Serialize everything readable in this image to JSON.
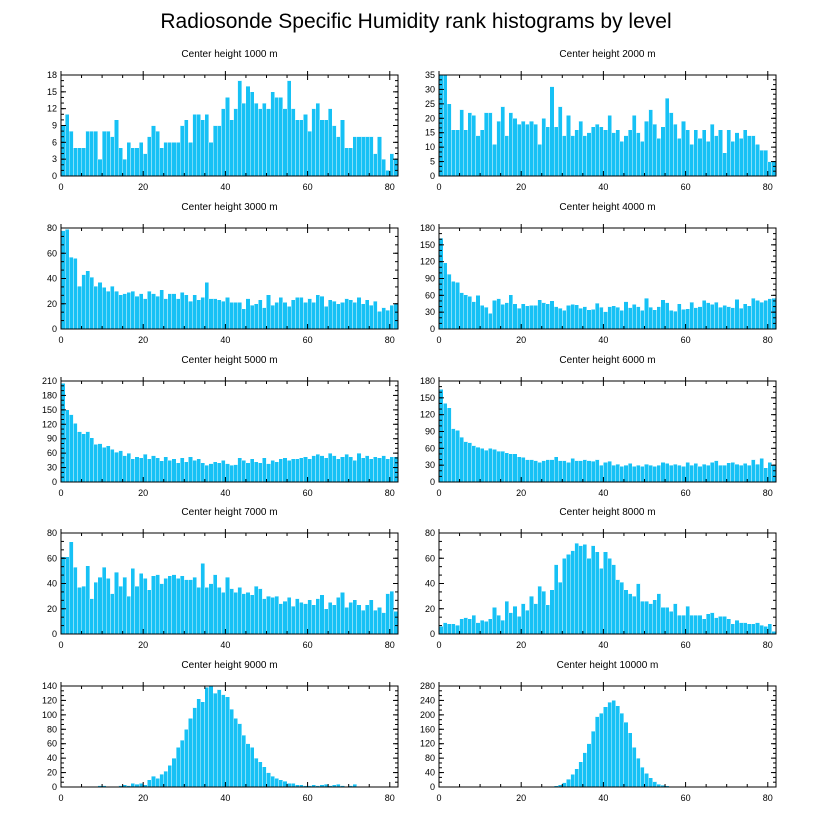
{
  "page": {
    "title": "Radiosonde Specific Humidity rank histograms by level"
  },
  "colors": {
    "bar": "#16c1f5",
    "bar_edge": "#ffffff",
    "axis": "#000000"
  },
  "chart_data": [
    {
      "type": "bar",
      "title": "Center height 1000 m",
      "xlim": [
        0,
        82
      ],
      "ylim": [
        0,
        18
      ],
      "xticks": [
        0,
        20,
        40,
        60,
        80
      ],
      "yticks": [
        0,
        3,
        6,
        9,
        12,
        15,
        18
      ],
      "xticklabels": [
        "0",
        "20",
        "40",
        "60",
        "80"
      ],
      "yticklabels": [
        "0",
        "3",
        "6",
        "9",
        "12",
        "15",
        "18"
      ],
      "values": [
        9,
        11,
        8,
        5,
        5,
        5,
        8,
        8,
        8,
        3,
        8,
        8,
        7,
        10,
        5,
        3,
        6,
        5,
        5,
        6,
        4,
        7,
        9,
        8,
        5,
        6,
        6,
        6,
        6,
        9,
        10,
        6,
        11,
        11,
        10,
        11,
        6,
        9,
        9,
        12,
        14,
        10,
        12,
        17,
        13,
        16,
        15,
        13,
        12,
        13,
        12,
        15,
        14,
        14,
        12,
        17,
        12,
        10,
        10,
        11,
        8,
        12,
        13,
        10,
        10,
        12,
        9,
        7,
        10,
        5,
        5,
        7,
        7,
        7,
        7,
        7,
        4,
        7,
        3,
        1,
        4,
        3
      ]
    },
    {
      "type": "bar",
      "title": "Center height 2000 m",
      "xlim": [
        0,
        82
      ],
      "ylim": [
        0,
        35
      ],
      "xticks": [
        0,
        20,
        40,
        60,
        80
      ],
      "yticks": [
        0,
        5,
        10,
        15,
        20,
        25,
        30,
        35
      ],
      "xticklabels": [
        "0",
        "20",
        "40",
        "60",
        "80"
      ],
      "yticklabels": [
        "0",
        "5",
        "10",
        "15",
        "20",
        "25",
        "30",
        "35"
      ],
      "values": [
        35,
        35,
        25,
        16,
        16,
        23,
        16,
        22,
        21,
        14,
        16,
        22,
        22,
        11,
        19,
        24,
        14,
        22,
        20,
        18,
        19,
        18,
        19,
        18,
        11,
        20,
        17,
        31,
        17,
        24,
        14,
        21,
        14,
        16,
        19,
        14,
        15,
        17,
        18,
        17,
        16,
        21,
        15,
        16,
        12,
        14,
        16,
        21,
        15,
        12,
        19,
        23,
        18,
        13,
        17,
        27,
        22,
        18,
        13,
        19,
        16,
        11,
        16,
        13,
        16,
        12,
        18,
        14,
        16,
        8,
        16,
        12,
        15,
        13,
        16,
        14,
        14,
        11,
        9,
        9,
        5,
        5
      ]
    },
    {
      "type": "bar",
      "title": "Center height 3000 m",
      "xlim": [
        0,
        82
      ],
      "ylim": [
        0,
        80
      ],
      "xticks": [
        0,
        20,
        40,
        60,
        80
      ],
      "yticks": [
        0,
        20,
        40,
        60,
        80
      ],
      "xticklabels": [
        "0",
        "20",
        "40",
        "60",
        "80"
      ],
      "yticklabels": [
        "0",
        "20",
        "40",
        "60",
        "80"
      ],
      "values": [
        78,
        79,
        57,
        56,
        34,
        43,
        46,
        41,
        34,
        37,
        33,
        30,
        34,
        30,
        27,
        28,
        29,
        30,
        26,
        28,
        24,
        30,
        28,
        26,
        31,
        24,
        28,
        28,
        24,
        29,
        27,
        22,
        27,
        23,
        25,
        37,
        24,
        24,
        23,
        22,
        25,
        21,
        21,
        21,
        16,
        24,
        19,
        20,
        23,
        17,
        27,
        19,
        21,
        25,
        21,
        18,
        23,
        25,
        25,
        21,
        24,
        21,
        27,
        26,
        18,
        23,
        22,
        20,
        21,
        24,
        23,
        21,
        25,
        20,
        23,
        19,
        22,
        14,
        17,
        15,
        19,
        20
      ]
    },
    {
      "type": "bar",
      "title": "Center height 4000 m",
      "xlim": [
        0,
        82
      ],
      "ylim": [
        0,
        180
      ],
      "xticks": [
        0,
        20,
        40,
        60,
        80
      ],
      "yticks": [
        0,
        30,
        60,
        90,
        120,
        150,
        180
      ],
      "xticklabels": [
        "0",
        "20",
        "40",
        "60",
        "80"
      ],
      "yticklabels": [
        "0",
        "30",
        "60",
        "90",
        "120",
        "150",
        "180"
      ],
      "values": [
        162,
        118,
        98,
        85,
        83,
        65,
        61,
        58,
        49,
        60,
        42,
        39,
        28,
        51,
        54,
        44,
        47,
        61,
        45,
        37,
        45,
        41,
        42,
        42,
        52,
        47,
        45,
        50,
        40,
        37,
        33,
        42,
        44,
        43,
        37,
        40,
        34,
        35,
        46,
        39,
        31,
        40,
        41,
        39,
        33,
        49,
        38,
        44,
        40,
        33,
        55,
        39,
        34,
        40,
        52,
        47,
        33,
        32,
        45,
        35,
        36,
        48,
        38,
        40,
        51,
        47,
        44,
        48,
        39,
        42,
        40,
        38,
        53,
        37,
        45,
        41,
        55,
        51,
        48,
        51,
        54,
        55
      ]
    },
    {
      "type": "bar",
      "title": "Center height 5000 m",
      "xlim": [
        0,
        82
      ],
      "ylim": [
        0,
        210
      ],
      "xticks": [
        0,
        20,
        40,
        60,
        80
      ],
      "yticks": [
        0,
        30,
        60,
        90,
        120,
        150,
        180,
        210
      ],
      "xticklabels": [
        "0",
        "20",
        "40",
        "60",
        "80"
      ],
      "yticklabels": [
        "0",
        "30",
        "60",
        "90",
        "120",
        "150",
        "180",
        "210"
      ],
      "values": [
        205,
        150,
        140,
        122,
        105,
        100,
        105,
        92,
        78,
        80,
        72,
        75,
        68,
        62,
        65,
        55,
        60,
        48,
        52,
        50,
        58,
        48,
        55,
        50,
        44,
        52,
        45,
        48,
        40,
        50,
        42,
        52,
        45,
        48,
        40,
        35,
        38,
        42,
        40,
        45,
        38,
        35,
        36,
        50,
        45,
        40,
        48,
        42,
        40,
        50,
        38,
        45,
        42,
        48,
        50,
        45,
        48,
        48,
        50,
        52,
        48,
        55,
        58,
        55,
        50,
        60,
        55,
        48,
        52,
        58,
        52,
        45,
        60,
        50,
        55,
        48,
        52,
        50,
        55,
        48,
        52,
        52
      ]
    },
    {
      "type": "bar",
      "title": "Center height 6000 m",
      "xlim": [
        0,
        82
      ],
      "ylim": [
        0,
        180
      ],
      "xticks": [
        0,
        20,
        40,
        60,
        80
      ],
      "yticks": [
        0,
        30,
        60,
        90,
        120,
        150,
        180
      ],
      "xticklabels": [
        "0",
        "20",
        "40",
        "60",
        "80"
      ],
      "yticklabels": [
        "0",
        "30",
        "60",
        "90",
        "120",
        "150",
        "180"
      ],
      "values": [
        165,
        140,
        132,
        95,
        92,
        80,
        72,
        70,
        65,
        62,
        60,
        57,
        60,
        58,
        55,
        55,
        52,
        50,
        50,
        45,
        44,
        40,
        40,
        38,
        35,
        38,
        40,
        40,
        45,
        38,
        38,
        35,
        42,
        38,
        38,
        40,
        38,
        37,
        40,
        30,
        35,
        37,
        30,
        32,
        28,
        30,
        33,
        28,
        30,
        28,
        32,
        30,
        28,
        30,
        35,
        33,
        30,
        32,
        30,
        28,
        35,
        30,
        33,
        28,
        32,
        30,
        35,
        38,
        30,
        30,
        34,
        35,
        32,
        30,
        33,
        30,
        40,
        32,
        42,
        25,
        35,
        30
      ]
    },
    {
      "type": "bar",
      "title": "Center height 7000 m",
      "xlim": [
        0,
        82
      ],
      "ylim": [
        0,
        80
      ],
      "xticks": [
        0,
        20,
        40,
        60,
        80
      ],
      "yticks": [
        0,
        20,
        40,
        60,
        80
      ],
      "xticklabels": [
        "0",
        "20",
        "40",
        "60",
        "80"
      ],
      "yticklabels": [
        "0",
        "20",
        "40",
        "60",
        "80"
      ],
      "values": [
        61,
        61,
        73,
        53,
        37,
        38,
        54,
        28,
        41,
        45,
        53,
        44,
        32,
        49,
        38,
        45,
        30,
        52,
        38,
        48,
        44,
        35,
        46,
        47,
        40,
        44,
        46,
        47,
        44,
        46,
        43,
        43,
        45,
        37,
        56,
        37,
        40,
        47,
        37,
        33,
        45,
        36,
        33,
        37,
        32,
        33,
        31,
        38,
        36,
        28,
        30,
        29,
        30,
        24,
        26,
        29,
        22,
        28,
        25,
        24,
        27,
        23,
        28,
        31,
        20,
        25,
        23,
        29,
        33,
        21,
        25,
        27,
        23,
        19,
        23,
        27,
        19,
        21,
        17,
        32,
        34,
        18
      ]
    },
    {
      "type": "bar",
      "title": "Center height 8000 m",
      "xlim": [
        0,
        82
      ],
      "ylim": [
        0,
        80
      ],
      "xticks": [
        0,
        20,
        40,
        60,
        80
      ],
      "yticks": [
        0,
        20,
        40,
        60,
        80
      ],
      "xticklabels": [
        "0",
        "20",
        "40",
        "60",
        "80"
      ],
      "yticklabels": [
        "0",
        "20",
        "40",
        "60",
        "80"
      ],
      "values": [
        6,
        9,
        8,
        8,
        7,
        12,
        13,
        12,
        15,
        9,
        11,
        10,
        12,
        21,
        15,
        11,
        26,
        17,
        22,
        14,
        24,
        19,
        30,
        24,
        38,
        34,
        23,
        35,
        55,
        41,
        60,
        63,
        66,
        72,
        70,
        71,
        60,
        70,
        65,
        52,
        65,
        60,
        55,
        43,
        41,
        35,
        32,
        30,
        40,
        26,
        26,
        24,
        27,
        32,
        21,
        21,
        18,
        24,
        15,
        15,
        22,
        15,
        15,
        15,
        12,
        16,
        17,
        13,
        14,
        14,
        12,
        8,
        11,
        9,
        9,
        8,
        8,
        9,
        7,
        6,
        8,
        2
      ]
    },
    {
      "type": "bar",
      "title": "Center height 9000 m",
      "xlim": [
        0,
        82
      ],
      "ylim": [
        0,
        140
      ],
      "xticks": [
        0,
        20,
        40,
        60,
        80
      ],
      "yticks": [
        0,
        20,
        40,
        60,
        80,
        100,
        120,
        140
      ],
      "xticklabels": [
        "0",
        "20",
        "40",
        "60",
        "80"
      ],
      "yticklabels": [
        "0",
        "20",
        "40",
        "60",
        "80",
        "100",
        "120",
        "140"
      ],
      "values": [
        0,
        0,
        0,
        0,
        0,
        0,
        0,
        1,
        1,
        2,
        2,
        1,
        1,
        0,
        2,
        3,
        2,
        5,
        4,
        5,
        3,
        10,
        15,
        12,
        18,
        22,
        30,
        40,
        55,
        65,
        80,
        95,
        110,
        122,
        118,
        138,
        140,
        130,
        135,
        128,
        125,
        108,
        95,
        88,
        72,
        60,
        55,
        40,
        35,
        28,
        20,
        15,
        12,
        10,
        8,
        5,
        5,
        3,
        3,
        2,
        2,
        3,
        2,
        3,
        4,
        2,
        3,
        4,
        2,
        1,
        2,
        4,
        1,
        0,
        1,
        0,
        0,
        0,
        0,
        0,
        0,
        0
      ]
    },
    {
      "type": "bar",
      "title": "Center height 10000 m",
      "xlim": [
        0,
        82
      ],
      "ylim": [
        0,
        280
      ],
      "xticks": [
        0,
        20,
        40,
        60,
        80
      ],
      "yticks": [
        0,
        40,
        80,
        120,
        160,
        200,
        240,
        280
      ],
      "xticklabels": [
        "0",
        "20",
        "40",
        "60",
        "80"
      ],
      "yticklabels": [
        "0",
        "40",
        "80",
        "120",
        "160",
        "200",
        "240",
        "280"
      ],
      "values": [
        0,
        0,
        0,
        0,
        0,
        0,
        0,
        0,
        0,
        0,
        0,
        0,
        0,
        0,
        0,
        0,
        0,
        0,
        0,
        0,
        0,
        0,
        0,
        0,
        0,
        0,
        0,
        1,
        3,
        6,
        12,
        22,
        35,
        50,
        70,
        95,
        120,
        155,
        195,
        205,
        222,
        235,
        240,
        225,
        205,
        180,
        150,
        110,
        80,
        55,
        38,
        25,
        15,
        8,
        5,
        3,
        2,
        2,
        1,
        1,
        0,
        0,
        0,
        0,
        0,
        0,
        0,
        0,
        0,
        0,
        0,
        0,
        0,
        0,
        0,
        0,
        0,
        0,
        0,
        0,
        0,
        0
      ]
    }
  ]
}
